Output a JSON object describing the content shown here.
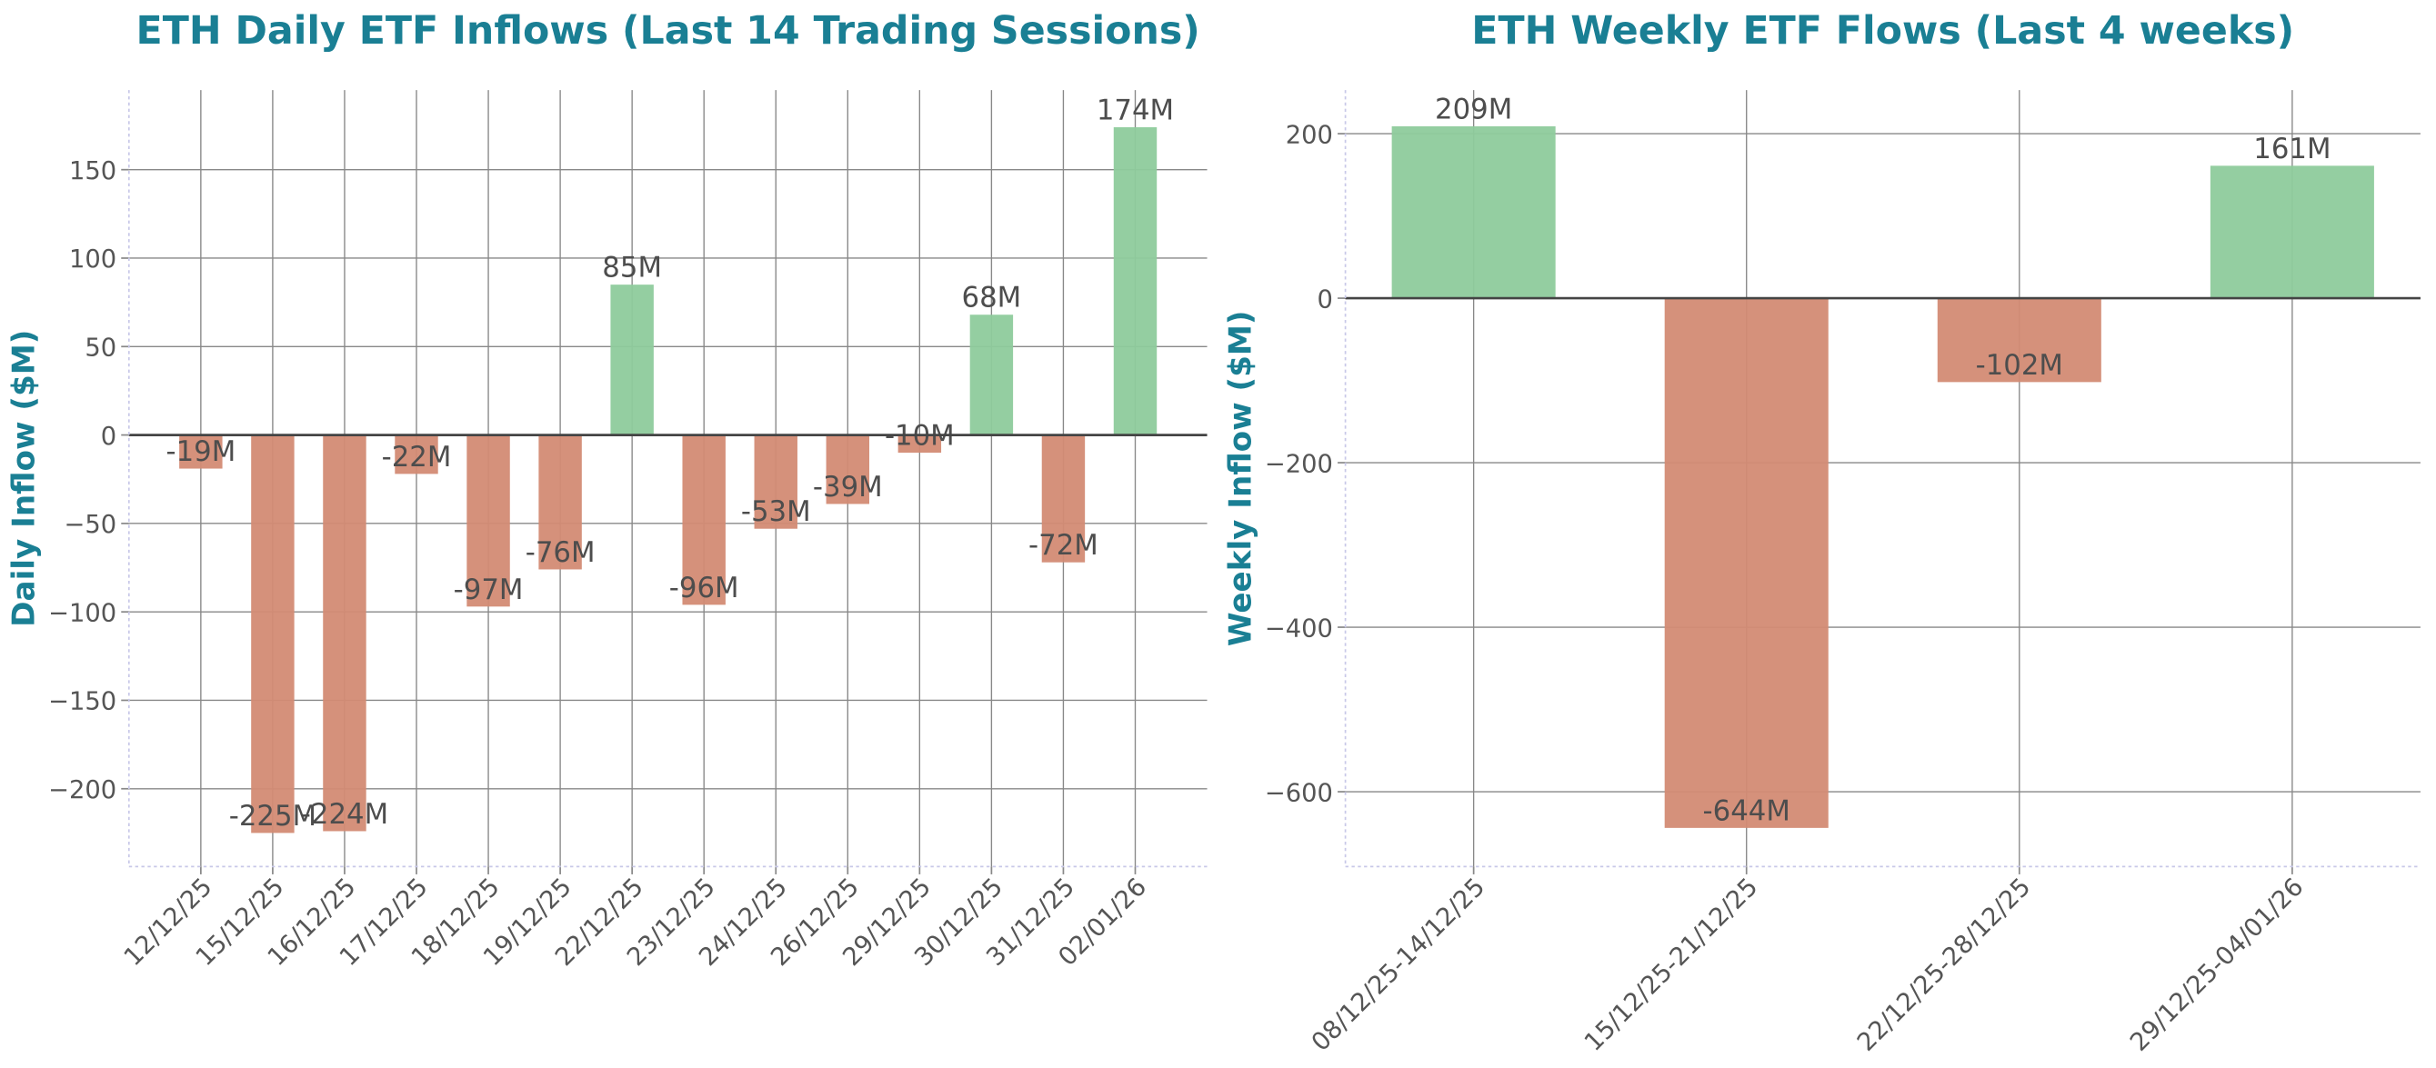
{
  "chart_data": [
    {
      "type": "bar",
      "title": "ETH Daily ETF Inflows (Last 14 Trading Sessions)",
      "y_label": "Daily Inflow ($M)",
      "categories": [
        "12/12/25",
        "15/12/25",
        "16/12/25",
        "17/12/25",
        "18/12/25",
        "19/12/25",
        "22/12/25",
        "23/12/25",
        "24/12/25",
        "26/12/25",
        "29/12/25",
        "30/12/25",
        "31/12/25",
        "02/01/26"
      ],
      "values": [
        -19,
        -225,
        -224,
        -22,
        -97,
        -76,
        85,
        -96,
        -53,
        -39,
        -10,
        68,
        -72,
        174
      ],
      "value_labels": [
        "-19M",
        "-225M",
        "-224M",
        "-22M",
        "-97M",
        "-76M",
        "85M",
        "-96M",
        "-53M",
        "-39M",
        "-10M",
        "68M",
        "-72M",
        "174M"
      ],
      "positive_color": "#8ecb9c",
      "negative_color": "#d38b74",
      "ylim": [
        -244,
        195
      ],
      "yticks": [
        {
          "value": -200,
          "label": "−200"
        },
        {
          "value": -150,
          "label": "−150"
        },
        {
          "value": -100,
          "label": "−100"
        },
        {
          "value": -50,
          "label": "−50"
        },
        0,
        50,
        100,
        150
      ],
      "grid": true
    },
    {
      "type": "bar",
      "title": "ETH Weekly ETF Flows (Last 4 weeks)",
      "y_label": "Weekly Inflow ($M)",
      "categories": [
        "08/12/25-14/12/25",
        "15/12/25-21/12/25",
        "22/12/25-28/12/25",
        "29/12/25-04/01/26"
      ],
      "values": [
        209,
        -644,
        -102,
        161
      ],
      "value_labels": [
        "209M",
        "-644M",
        "-102M",
        "161M"
      ],
      "positive_color": "#8ecb9c",
      "negative_color": "#d38b74",
      "ylim": [
        -691,
        253
      ],
      "yticks": [
        {
          "value": -600,
          "label": "−600"
        },
        {
          "value": -400,
          "label": "−400"
        },
        {
          "value": -200,
          "label": "−200"
        },
        0,
        200
      ],
      "grid": true
    }
  ]
}
